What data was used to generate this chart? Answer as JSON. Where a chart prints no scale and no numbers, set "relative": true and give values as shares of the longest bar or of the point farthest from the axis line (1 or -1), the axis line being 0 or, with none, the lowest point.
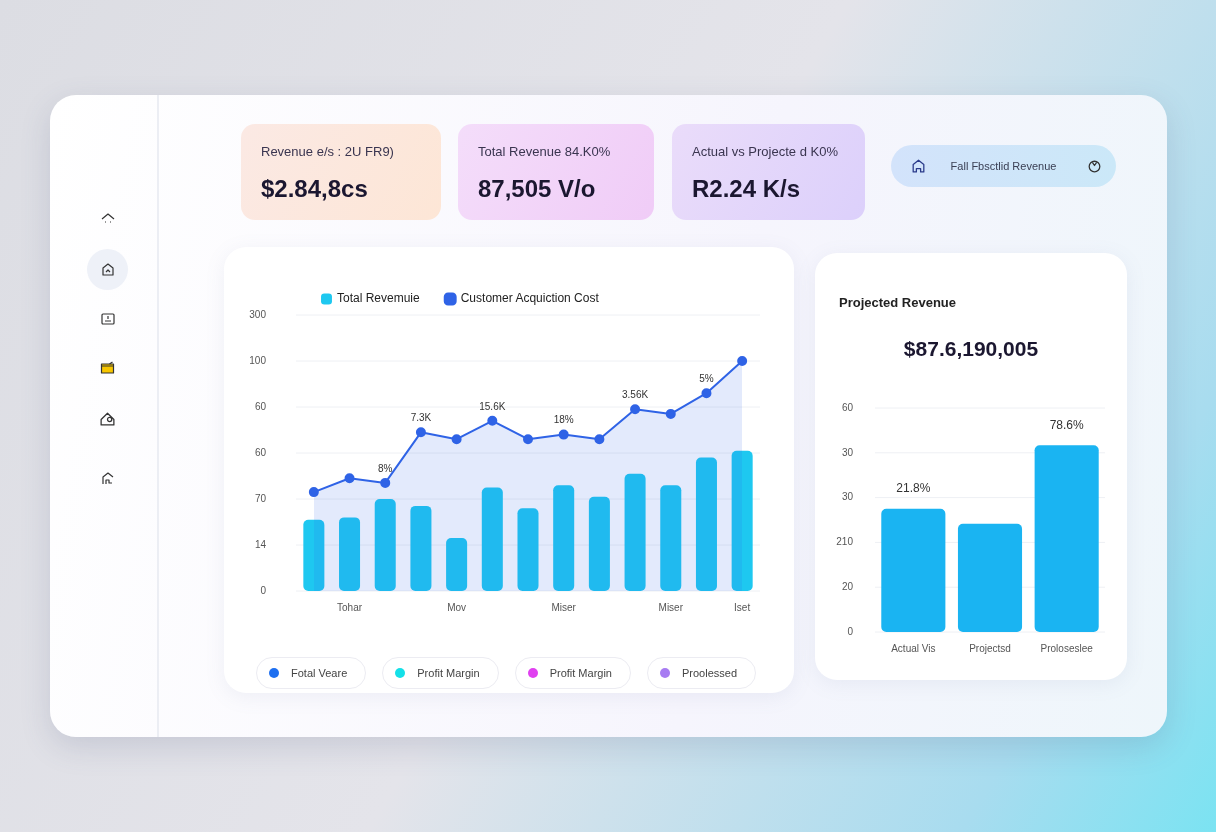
{
  "chart_data": [
    {
      "type": "other",
      "title": "Revenue e/s : 2U FR9)",
      "annotations": [
        "$2.84,8cs"
      ]
    },
    {
      "type": "other",
      "title": "Total Revenue 84.K0%",
      "annotations": [
        "87,505 V/o"
      ]
    },
    {
      "type": "other",
      "title": "Actual vs Projecte d K0%",
      "annotations": [
        "R2.24 K/s"
      ]
    },
    {
      "type": "other",
      "title": "Fall Fbsctlid Revenue"
    },
    {
      "type": "bar",
      "relative": true,
      "categories": [
        null,
        "Tohar",
        null,
        null,
        "Mov",
        null,
        null,
        "Miser",
        null,
        null,
        "Miser",
        null,
        "Iset"
      ],
      "series": [
        {
          "name": "Total Revemuie",
          "type": "bar",
          "color": "#1ec8f0",
          "values": [
            0.31,
            0.32,
            0.4,
            0.37,
            0.23,
            0.45,
            0.36,
            0.46,
            0.41,
            0.51,
            0.46,
            0.58,
            0.61
          ]
        },
        {
          "name": "Customer Acquiction Cost",
          "type": "area",
          "color": "#2f63e6",
          "values": [
            0.43,
            0.49,
            0.47,
            0.69,
            0.66,
            0.74,
            0.66,
            0.68,
            0.66,
            0.79,
            0.77,
            0.86,
            1
          ]
        }
      ],
      "grid": "y",
      "legend": "top left",
      "marker": "circle",
      "annotations": [
        "0",
        "14",
        "70",
        "60",
        "60",
        "100",
        "300",
        {
          "text": "8%",
          "y": 0.47
        },
        {
          "text": "7.3K",
          "y": 0.69
        },
        {
          "text": "15.6K",
          "y": 0.74
        },
        {
          "text": "18%",
          "y": 0.68
        },
        {
          "text": "3.56K",
          "y": 0.79
        },
        {
          "text": "5%",
          "y": 0.86
        }
      ]
    },
    {
      "type": "other",
      "annotations": [
        "Fotal Veare",
        "Profit Margin",
        "Profit Margin",
        "Proolessed"
      ]
    },
    {
      "type": "bar",
      "relative": true,
      "title": "Projected Revenue",
      "subtitle": "$87.6,190,005",
      "categories": [
        "Actual Vis",
        "Projectsd",
        "Proloseslee"
      ],
      "values": [
        0.66,
        0.58,
        1
      ],
      "color": "#1ab4f2",
      "grid": "y",
      "annotations": [
        "0",
        "20",
        "210",
        "30",
        "30",
        "60",
        {
          "text": "21.8%",
          "x": "Actual Vis",
          "y": 0.66
        },
        {
          "text": "78.6%",
          "x": "Proloseslee",
          "y": 1
        }
      ]
    }
  ]
}
